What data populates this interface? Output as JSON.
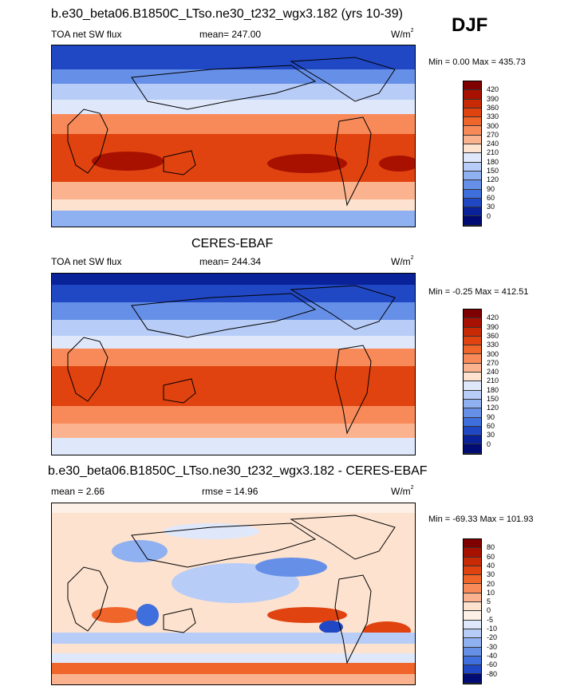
{
  "season": "DJF",
  "panels": [
    {
      "title": "b.e30_beta06.B1850C_LTso.ne30_t232_wgx3.182 (yrs 10-39)",
      "left_label": "TOA net SW flux",
      "center_label": "mean= 247.00",
      "units": "W/m",
      "units_sup": "2",
      "minmax": "Min =   0.00 Max = 435.73",
      "colorbar_labels": [
        "420",
        "390",
        "360",
        "330",
        "300",
        "270",
        "240",
        "210",
        "180",
        "150",
        "120",
        "90",
        "60",
        "30",
        "0"
      ],
      "colors": [
        "#7f0000",
        "#a81100",
        "#c92a06",
        "#e0430f",
        "#f0652a",
        "#f88a5a",
        "#fbb28f",
        "#fde2cf",
        "#dfe8fb",
        "#b7ccf7",
        "#8fb0f1",
        "#6690e8",
        "#3e6fdc",
        "#2148c4",
        "#0a2299",
        "#000c73"
      ]
    },
    {
      "title": "CERES-EBAF",
      "left_label": "TOA net SW flux",
      "center_label": "mean= 244.34",
      "units": "W/m",
      "units_sup": "2",
      "minmax": "Min =  -0.25 Max = 412.51",
      "colorbar_labels": [
        "420",
        "390",
        "360",
        "330",
        "300",
        "270",
        "240",
        "210",
        "180",
        "150",
        "120",
        "90",
        "60",
        "30",
        "0"
      ],
      "colors": [
        "#7f0000",
        "#a81100",
        "#c92a06",
        "#e0430f",
        "#f0652a",
        "#f88a5a",
        "#fbb28f",
        "#fde2cf",
        "#dfe8fb",
        "#b7ccf7",
        "#8fb0f1",
        "#6690e8",
        "#3e6fdc",
        "#2148c4",
        "#0a2299",
        "#000c73"
      ]
    },
    {
      "title": "b.e30_beta06.B1850C_LTso.ne30_t232_wgx3.182 - CERES-EBAF",
      "left_label": "mean =   2.66",
      "center_label": "rmse =  14.96",
      "units": "W/m",
      "units_sup": "2",
      "minmax": "Min = -69.33 Max = 101.93",
      "colorbar_labels": [
        "80",
        "60",
        "40",
        "30",
        "20",
        "10",
        "5",
        "0",
        "-5",
        "-10",
        "-20",
        "-30",
        "-40",
        "-60",
        "-80"
      ],
      "colors": [
        "#7f0000",
        "#a81100",
        "#c92a06",
        "#e0430f",
        "#f0652a",
        "#f88a5a",
        "#fbb28f",
        "#fde2cf",
        "#fdf0e6",
        "#dfe8fb",
        "#b7ccf7",
        "#8fb0f1",
        "#6690e8",
        "#3e6fdc",
        "#2148c4",
        "#000c73"
      ]
    }
  ]
}
